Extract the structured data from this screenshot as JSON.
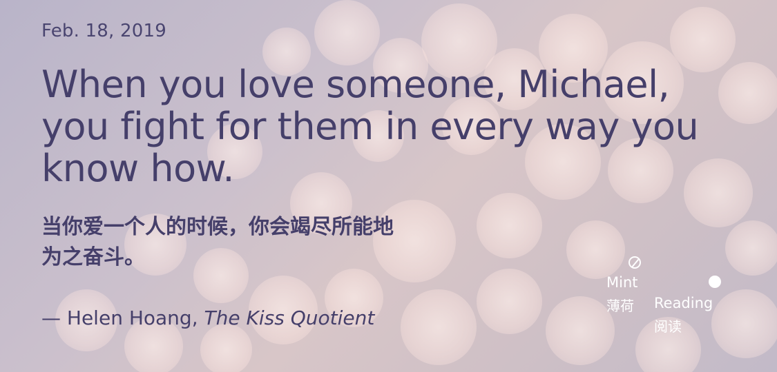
{
  "date": "Feb. 18, 2019",
  "quote_en": "When you love someone, Michael, you fight for them in every way you know how.",
  "quote_zh_line1": "当你爱一个人的时候，你会竭尽所能地",
  "quote_zh_line2": "为之奋斗。",
  "attribution": {
    "prefix": "— Helen Hoang, ",
    "book": "The Kiss Quotient"
  },
  "brand": {
    "mint_en": "Mint",
    "mint_zh": "薄荷",
    "reading_en": "Reading",
    "reading_zh": "阅读"
  },
  "colors": {
    "text": "#453f6a",
    "brand": "#ffffff"
  }
}
